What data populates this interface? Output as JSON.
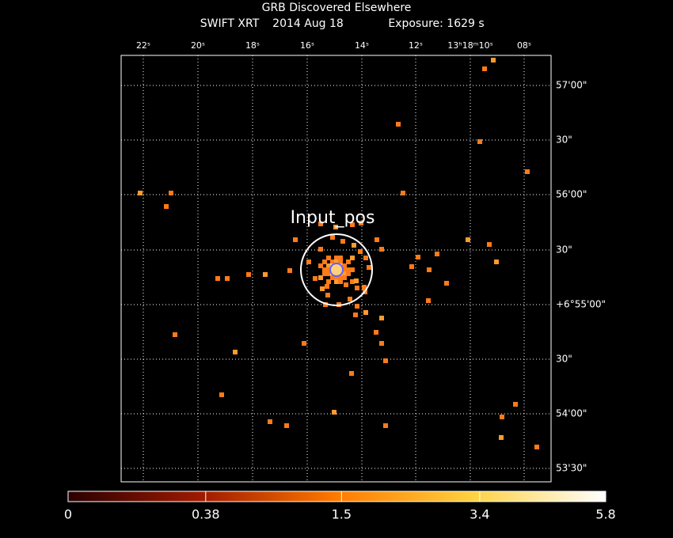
{
  "header": {
    "title": "GRB Discovered Elsewhere",
    "subtitle": [
      "SWIFT XRT",
      "2014 Aug 18",
      "Exposure: 1629 s"
    ]
  },
  "image": {
    "ra_labels": [
      "22ˢ",
      "20ˢ",
      "18ˢ",
      "16ˢ",
      "14ˢ",
      "12ˢ",
      "13ʰ18ᵐ10ˢ",
      "08ˢ"
    ],
    "dec_labels": [
      "57'00\"",
      "30\"",
      "56'00\"",
      "30\"",
      "+6°55'00\"",
      "30\"",
      "54'00\"",
      "53'30\""
    ],
    "annotation": "Input_pos"
  },
  "colorbar": {
    "scale": "sqrt",
    "range": [
      0,
      5.8
    ],
    "ticks": [
      0,
      0.38,
      1.5,
      3.4,
      5.8
    ]
  }
}
